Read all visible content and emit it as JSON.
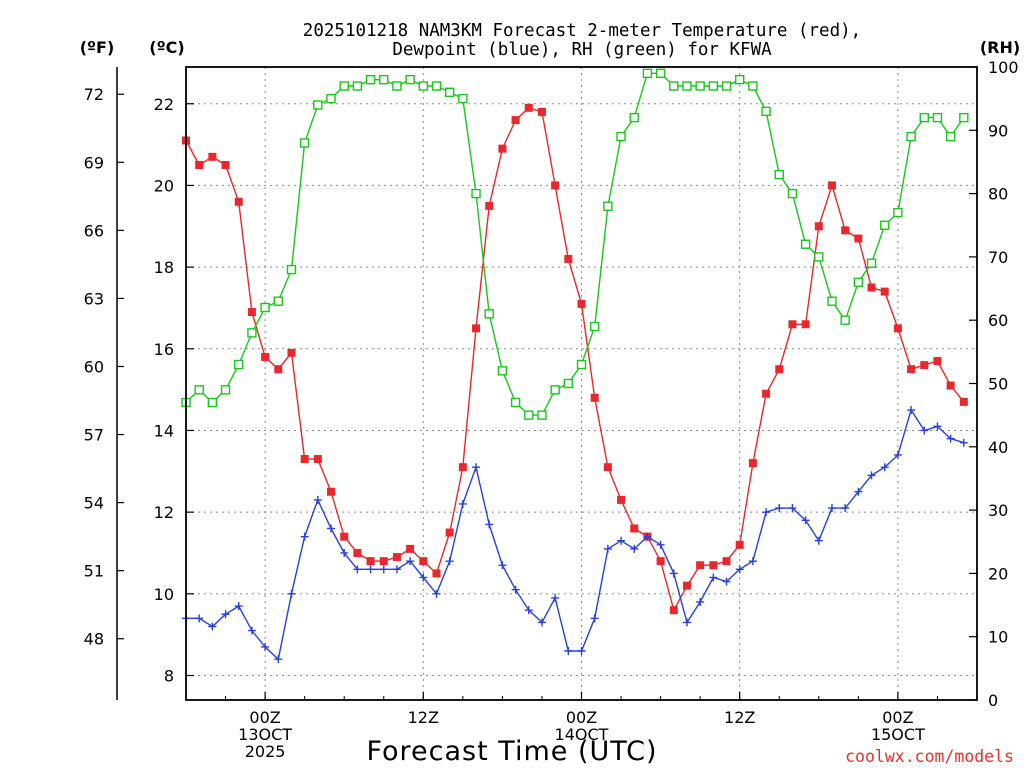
{
  "chart_data": {
    "type": "line",
    "title_line1": "2025101218 NAM3KM Forecast 2-meter Temperature (red),",
    "title_line2": "Dewpoint (blue), RH (green) for KFWA",
    "unit_left_outer": "(ºF)",
    "unit_left_inner": "(ºC)",
    "unit_right": "(RH)",
    "xlabel": "Forecast Time (UTC)",
    "credit": "coolwx.com/models",
    "x_range_hours": [
      0,
      60
    ],
    "x_ticks": [
      {
        "hour": 6,
        "lines": [
          "00Z",
          "13OCT",
          "2025"
        ]
      },
      {
        "hour": 18,
        "lines": [
          "12Z"
        ]
      },
      {
        "hour": 30,
        "lines": [
          "00Z",
          "14OCT"
        ]
      },
      {
        "hour": 42,
        "lines": [
          "12Z"
        ]
      },
      {
        "hour": 54,
        "lines": [
          "00Z",
          "15OCT"
        ]
      }
    ],
    "celsius_axis": {
      "range": [
        7.4,
        22.9
      ],
      "ticks": [
        8,
        10,
        12,
        14,
        16,
        18,
        20,
        22
      ]
    },
    "fahrenheit_axis": {
      "range": [
        45.3,
        73.2
      ],
      "ticks": [
        48,
        51,
        54,
        57,
        60,
        63,
        66,
        69,
        72
      ]
    },
    "rh_axis": {
      "range": [
        0,
        100
      ],
      "ticks": [
        0,
        10,
        20,
        30,
        40,
        50,
        60,
        70,
        80,
        90,
        100
      ]
    },
    "series": [
      {
        "name": "Temperature",
        "units": "C",
        "color": "#e8282c",
        "marker": "filled-square",
        "values": [
          21.1,
          20.5,
          20.7,
          20.5,
          19.6,
          16.9,
          15.8,
          15.5,
          15.9,
          13.3,
          13.3,
          12.5,
          11.4,
          11.0,
          10.8,
          10.8,
          10.9,
          11.1,
          10.8,
          10.5,
          11.5,
          13.1,
          16.5,
          19.5,
          20.9,
          21.6,
          21.9,
          21.8,
          20.0,
          18.2,
          17.1,
          14.8,
          13.1,
          12.3,
          11.6,
          11.4,
          10.8,
          9.6,
          10.2,
          10.7,
          10.7,
          10.8,
          11.2,
          13.2,
          14.9,
          15.5,
          16.6,
          16.6,
          19.0,
          20.0,
          18.9,
          18.7,
          17.5,
          17.4,
          16.5,
          15.5,
          15.6,
          15.7,
          15.1,
          14.7
        ]
      },
      {
        "name": "Dewpoint",
        "units": "C",
        "color": "#2840e0",
        "marker": "plus",
        "values": [
          9.4,
          9.4,
          9.2,
          9.5,
          9.7,
          9.1,
          8.7,
          8.4,
          10.0,
          11.4,
          12.3,
          11.6,
          11.0,
          10.6,
          10.6,
          10.6,
          10.6,
          10.8,
          10.4,
          10.0,
          10.8,
          12.2,
          13.1,
          11.7,
          10.7,
          10.1,
          9.6,
          9.3,
          9.9,
          8.6,
          8.6,
          9.4,
          11.1,
          11.3,
          11.1,
          11.4,
          11.2,
          10.5,
          9.3,
          9.8,
          10.4,
          10.3,
          10.6,
          10.8,
          12.0,
          12.1,
          12.1,
          11.8,
          11.3,
          12.1,
          12.1,
          12.5,
          12.9,
          13.1,
          13.4,
          14.5,
          14.0,
          14.1,
          13.8,
          13.7
        ]
      },
      {
        "name": "RH",
        "units": "%",
        "color": "#18c818",
        "marker": "open-square",
        "values": [
          47,
          49,
          47,
          49,
          53,
          58,
          62,
          63,
          68,
          88,
          94,
          95,
          97,
          97,
          98,
          98,
          97,
          98,
          97,
          97,
          96,
          95,
          80,
          61,
          52,
          47,
          45,
          45,
          49,
          50,
          53,
          59,
          78,
          89,
          92,
          99,
          99,
          97,
          97,
          97,
          97,
          97,
          98,
          97,
          93,
          83,
          80,
          72,
          70,
          63,
          60,
          66,
          69,
          75,
          77,
          89,
          92,
          92,
          89,
          92
        ]
      }
    ]
  }
}
